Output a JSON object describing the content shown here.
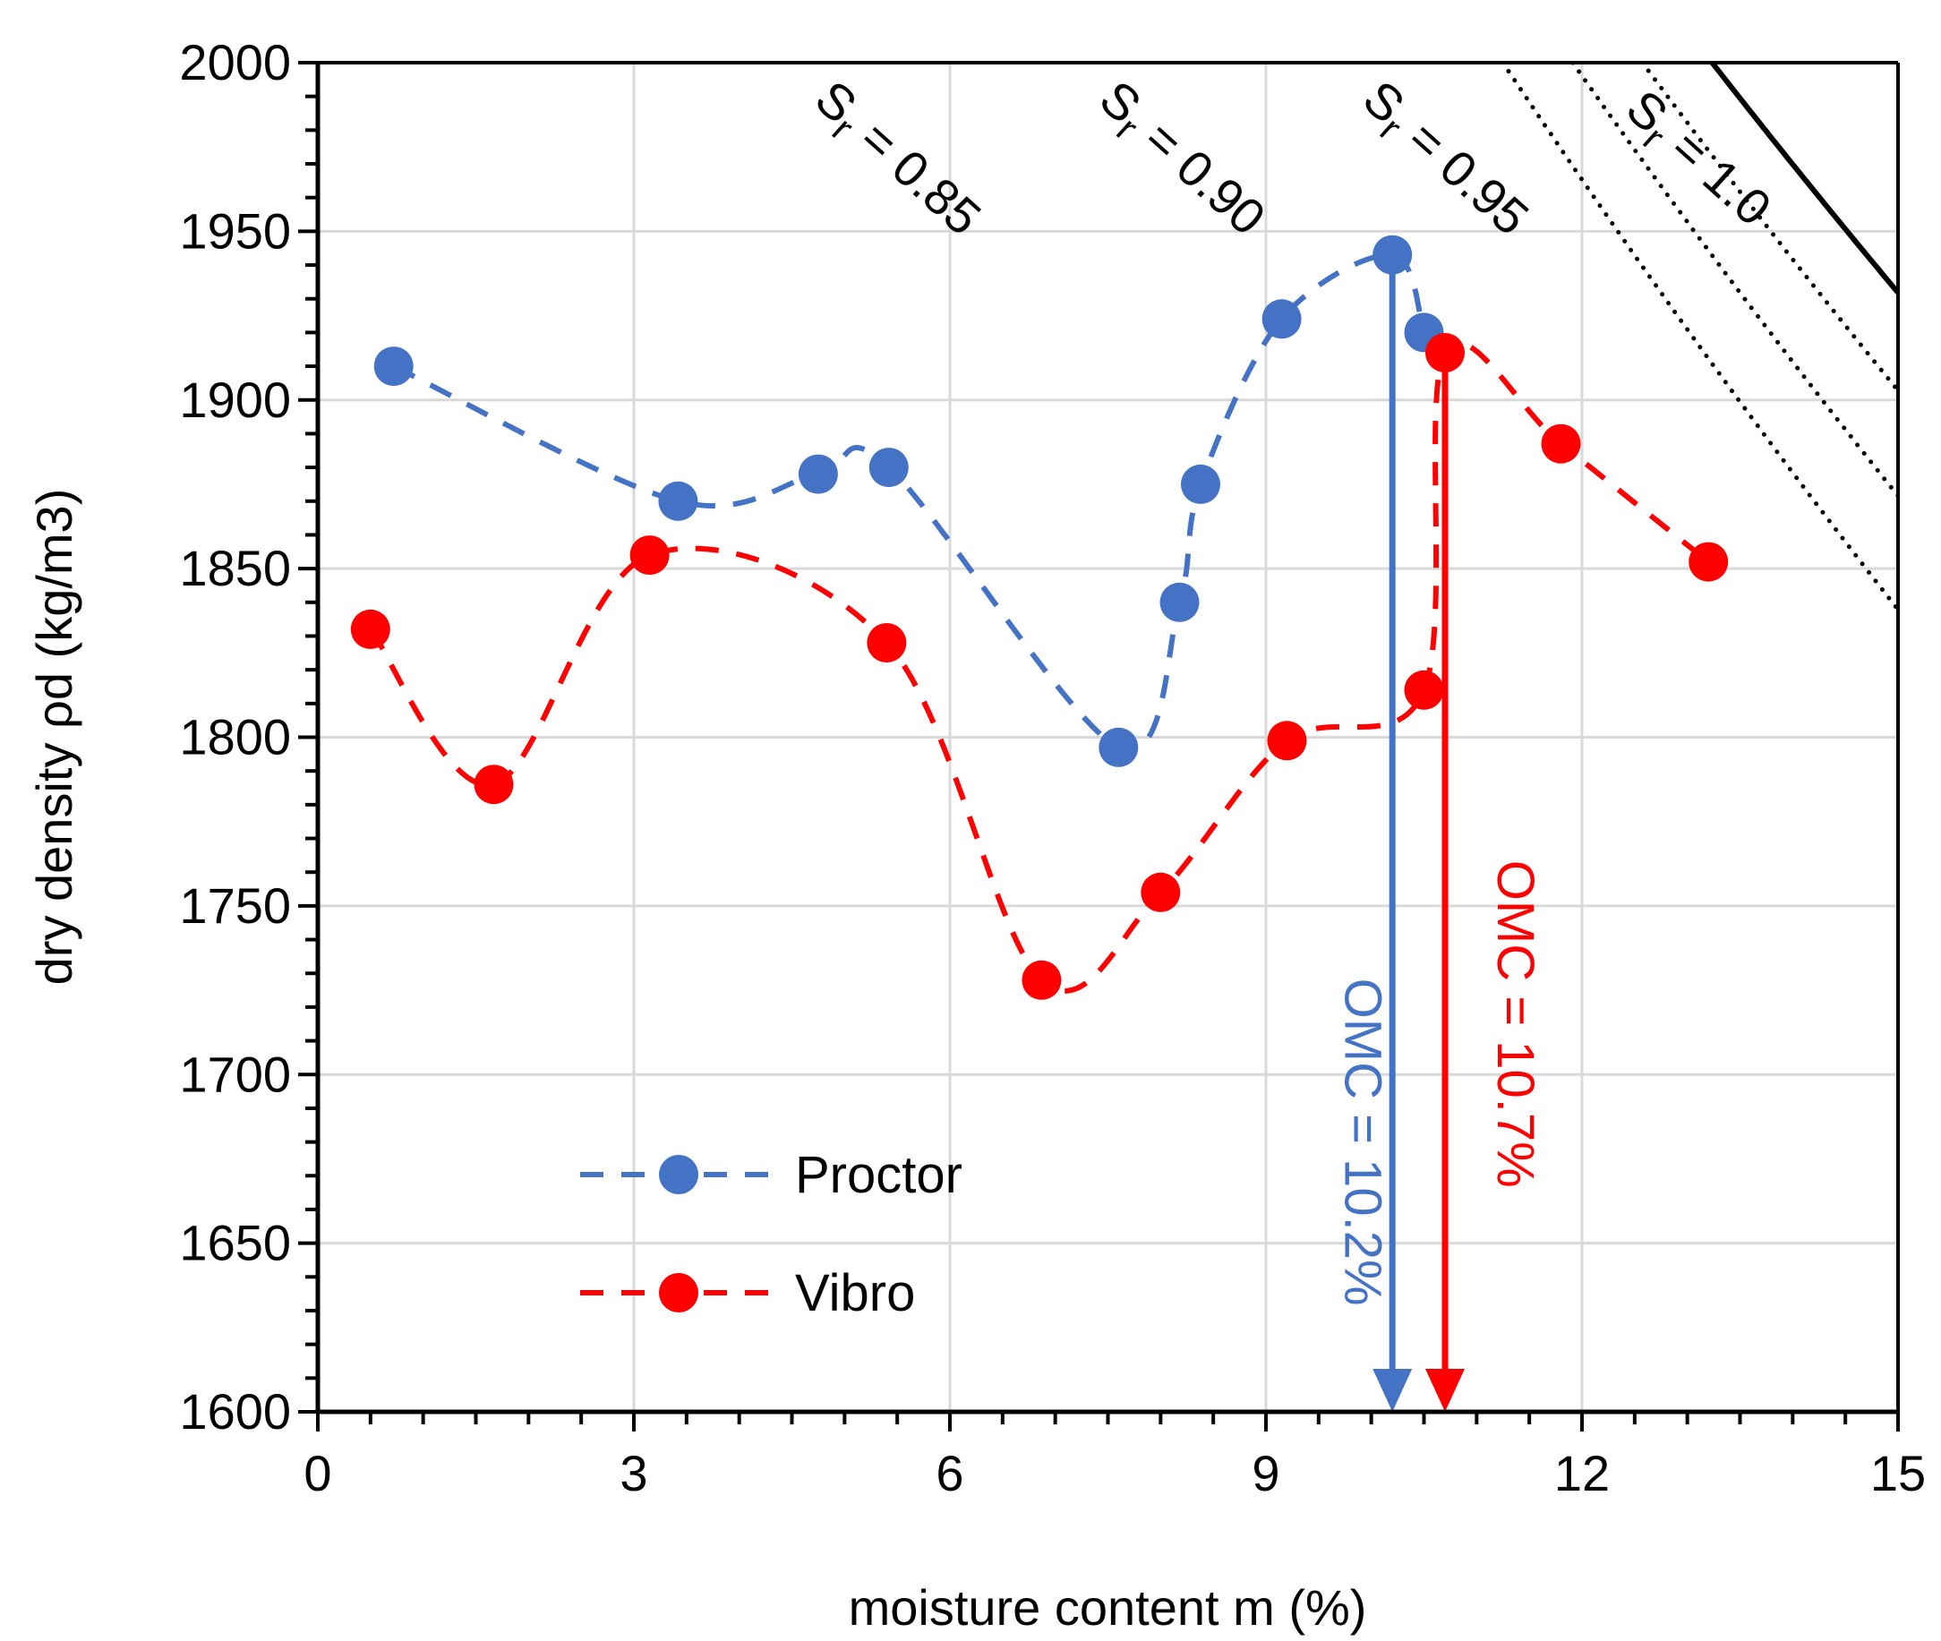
{
  "chart_data": {
    "type": "scatter",
    "title": "",
    "xlabel": "moisture content m (%)",
    "ylabel": "dry density ρd (kg/m3)",
    "xlim": [
      0,
      15
    ],
    "ylim": [
      1600,
      2000
    ],
    "xticks": [
      0,
      3,
      6,
      9,
      12,
      15
    ],
    "yticks": [
      1600,
      1650,
      1700,
      1750,
      1800,
      1850,
      1900,
      1950,
      2000
    ],
    "grid": true,
    "legend_position": "bottom-left",
    "series": [
      {
        "name": "Proctor",
        "color": "#4472C4",
        "line": "dashed-smooth",
        "x": [
          0.72,
          3.42,
          4.75,
          5.42,
          7.6,
          8.18,
          8.38,
          9.15,
          10.2,
          10.5
        ],
        "y": [
          1910,
          1870,
          1878,
          1880,
          1797,
          1840,
          1875,
          1924,
          1943,
          1920
        ]
      },
      {
        "name": "Vibro",
        "color": "#FF0000",
        "line": "dashed-smooth",
        "x": [
          0.5,
          1.67,
          3.15,
          5.4,
          6.87,
          8.0,
          9.2,
          10.5,
          10.7,
          11.8,
          13.2
        ],
        "y": [
          1832,
          1786,
          1854,
          1828,
          1728,
          1754,
          1799,
          1814,
          1914,
          1887,
          1852
        ]
      }
    ],
    "saturation_lines": [
      {
        "label": "Sr = 0.85",
        "sub_prefix": "S",
        "subscript": "r",
        "rest": " = 0.85",
        "Sr": 0.85,
        "Gs": 2.72,
        "style": "dotted",
        "color": "#000000",
        "label_at": [
          5.4,
          1968
        ]
      },
      {
        "label": "Sr = 0.90",
        "sub_prefix": "S",
        "subscript": "r",
        "rest": " = 0.90",
        "Sr": 0.9,
        "Gs": 2.72,
        "style": "dotted",
        "color": "#000000",
        "label_at": [
          8.1,
          1968
        ]
      },
      {
        "label": "Sr = 0.95",
        "sub_prefix": "S",
        "subscript": "r",
        "rest": " = 0.95",
        "Sr": 0.95,
        "Gs": 2.72,
        "style": "dotted",
        "color": "#000000",
        "label_at": [
          10.6,
          1968
        ]
      },
      {
        "label": "Sr = 1.0",
        "sub_prefix": "S",
        "subscript": "r",
        "rest": " = 1.0",
        "Sr": 1.0,
        "Gs": 2.72,
        "style": "solid",
        "color": "#000000",
        "label_at": [
          13.0,
          1968
        ]
      }
    ],
    "annotations": [
      {
        "text": "OMC = 10.2%",
        "color": "#4472C4",
        "x": 10.2,
        "from_y": 1943,
        "to_y": 1600,
        "label_x": 9.75,
        "label_y": 1680
      },
      {
        "text": "OMC = 10.7%",
        "color": "#FF0000",
        "x": 10.7,
        "from_y": 1914,
        "to_y": 1600,
        "label_x": 11.2,
        "label_y": 1715
      }
    ]
  }
}
